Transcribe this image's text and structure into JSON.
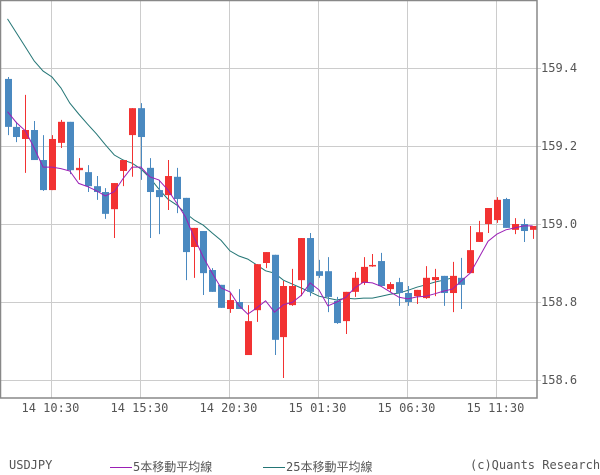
{
  "symbol": "USDJPY",
  "copyright": "(c)Quants Research",
  "colors": {
    "up": "#f23232",
    "down": "#4a89c0",
    "ma5": "#9b1fb5",
    "ma25": "#237575",
    "grid": "#cccccc",
    "frame": "#888888",
    "text": "#555555"
  },
  "legend": [
    {
      "label": "5本移動平均線",
      "color": "#9b1fb5"
    },
    {
      "label": "25本移動平均線",
      "color": "#237575"
    }
  ],
  "chart_data": {
    "type": "candlestick",
    "title": "USDJPY",
    "interval": "30min",
    "xlabel": "",
    "ylabel": "",
    "ylim": [
      158.555,
      159.575
    ],
    "yticks": [
      159.4,
      159.2,
      159.0,
      158.8,
      158.6
    ],
    "ytick_labels": [
      "159.4",
      "159.2",
      "159.0",
      "158.8",
      "158.6"
    ],
    "xtick_labels": [
      "14 10:30",
      "14 15:30",
      "14 20:30",
      "15 01:30",
      "15 06:30",
      "15 11:30"
    ],
    "xtick_candle_index": [
      5,
      15,
      25,
      35,
      45,
      55
    ],
    "grid": true,
    "legend_position": "bottom",
    "series": [
      {
        "name": "5本移動平均線",
        "values": [
          159.288,
          159.26,
          159.239,
          159.195,
          159.146,
          159.146,
          159.142,
          159.136,
          159.104,
          159.096,
          159.085,
          159.072,
          159.083,
          159.117,
          159.146,
          159.146,
          159.121,
          159.113,
          159.088,
          159.054,
          159.018,
          158.964,
          158.915,
          158.874,
          158.836,
          158.826,
          158.791,
          158.769,
          158.785,
          158.803,
          158.774,
          158.793,
          158.799,
          158.817,
          158.849,
          158.831,
          158.79,
          158.8,
          158.812,
          158.836,
          158.851,
          158.849,
          158.84,
          158.826,
          158.812,
          158.808,
          158.813,
          158.815,
          158.821,
          158.828,
          158.833,
          158.854,
          158.874,
          158.915,
          158.956,
          158.974,
          158.985,
          158.99,
          158.995,
          158.995
        ]
      },
      {
        "name": "25本移動平均線",
        "values": [
          159.526,
          159.49,
          159.454,
          159.418,
          159.392,
          159.377,
          159.349,
          159.31,
          159.282,
          159.256,
          159.231,
          159.203,
          159.177,
          159.164,
          159.156,
          159.141,
          159.118,
          159.09,
          159.064,
          159.049,
          159.028,
          159.01,
          158.997,
          158.977,
          158.958,
          158.931,
          158.918,
          158.91,
          158.895,
          158.88,
          158.874,
          158.856,
          158.846,
          158.836,
          158.826,
          158.815,
          158.81,
          158.805,
          158.81,
          158.808,
          158.81,
          158.81,
          158.815,
          158.82,
          158.823,
          158.83,
          158.838,
          158.844,
          158.851,
          158.856,
          158.862
        ]
      },
      {
        "name": "USDJPY",
        "ohlc": [
          [
            159.372,
            159.377,
            159.228,
            159.249
          ],
          [
            159.249,
            159.262,
            159.21,
            159.223
          ],
          [
            159.218,
            159.331,
            159.131,
            159.241
          ],
          [
            159.241,
            159.264,
            159.164,
            159.164
          ],
          [
            159.164,
            159.228,
            159.085,
            159.087
          ],
          [
            159.087,
            159.228,
            159.087,
            159.218
          ],
          [
            159.208,
            159.267,
            159.195,
            159.262
          ],
          [
            159.262,
            159.262,
            159.128,
            159.138
          ],
          [
            159.138,
            159.169,
            159.113,
            159.144
          ],
          [
            159.133,
            159.151,
            159.082,
            159.097
          ],
          [
            159.097,
            159.123,
            159.062,
            159.082
          ],
          [
            159.082,
            159.092,
            159.013,
            159.026
          ],
          [
            159.038,
            159.105,
            158.964,
            159.105
          ],
          [
            159.136,
            159.164,
            159.097,
            159.164
          ],
          [
            159.228,
            159.285,
            159.121,
            159.297
          ],
          [
            159.297,
            159.31,
            159.113,
            159.223
          ],
          [
            159.144,
            159.169,
            158.964,
            159.082
          ],
          [
            159.087,
            159.113,
            158.974,
            159.069
          ],
          [
            159.074,
            159.164,
            159.036,
            159.123
          ],
          [
            159.121,
            159.144,
            159.028,
            159.064
          ],
          [
            159.067,
            159.067,
            158.856,
            158.928
          ],
          [
            158.941,
            158.969,
            158.862,
            158.99
          ],
          [
            158.982,
            158.982,
            158.818,
            158.874
          ],
          [
            158.882,
            158.887,
            158.826,
            158.826
          ],
          [
            158.844,
            158.844,
            158.787,
            158.785
          ],
          [
            158.782,
            158.823,
            158.772,
            158.805
          ],
          [
            158.8,
            158.833,
            158.792,
            158.782
          ],
          [
            158.664,
            158.792,
            158.664,
            158.751
          ],
          [
            158.779,
            158.877,
            158.749,
            158.897
          ],
          [
            158.9,
            158.928,
            158.887,
            158.928
          ],
          [
            158.921,
            158.921,
            158.664,
            158.703
          ],
          [
            158.71,
            158.854,
            158.605,
            158.841
          ],
          [
            158.792,
            158.885,
            158.79,
            158.841
          ],
          [
            158.856,
            158.964,
            158.815,
            158.964
          ],
          [
            158.964,
            158.977,
            158.815,
            158.826
          ],
          [
            158.879,
            158.908,
            158.862,
            158.867
          ],
          [
            158.879,
            158.915,
            158.774,
            158.813
          ],
          [
            158.803,
            158.813,
            158.744,
            158.746
          ],
          [
            158.751,
            158.823,
            158.718,
            158.826
          ],
          [
            158.826,
            158.877,
            158.813,
            158.862
          ],
          [
            158.849,
            158.915,
            158.844,
            158.89
          ],
          [
            158.892,
            158.923,
            158.89,
            158.895
          ],
          [
            158.905,
            158.926,
            158.841,
            158.841
          ],
          [
            158.833,
            158.851,
            158.826,
            158.846
          ],
          [
            158.851,
            158.862,
            158.79,
            158.823
          ],
          [
            158.823,
            158.841,
            158.79,
            158.8
          ],
          [
            158.815,
            158.821,
            158.795,
            158.831
          ],
          [
            158.81,
            158.892,
            158.808,
            158.862
          ],
          [
            158.856,
            158.885,
            158.815,
            158.864
          ],
          [
            158.867,
            158.867,
            158.79,
            158.823
          ],
          [
            158.823,
            158.903,
            158.774,
            158.867
          ],
          [
            158.862,
            158.913,
            158.782,
            158.844
          ],
          [
            158.874,
            158.995,
            158.874,
            158.933
          ],
          [
            158.954,
            159.008,
            158.954,
            158.979
          ],
          [
            159.0,
            159.005,
            158.977,
            159.041
          ],
          [
            159.01,
            159.069,
            159.003,
            159.062
          ],
          [
            159.064,
            159.067,
            158.992,
            158.99
          ],
          [
            158.985,
            159.015,
            158.974,
            159.0
          ],
          [
            159.0,
            159.013,
            158.954,
            158.982
          ],
          [
            158.985,
            158.987,
            158.962,
            158.995
          ]
        ]
      }
    ]
  }
}
